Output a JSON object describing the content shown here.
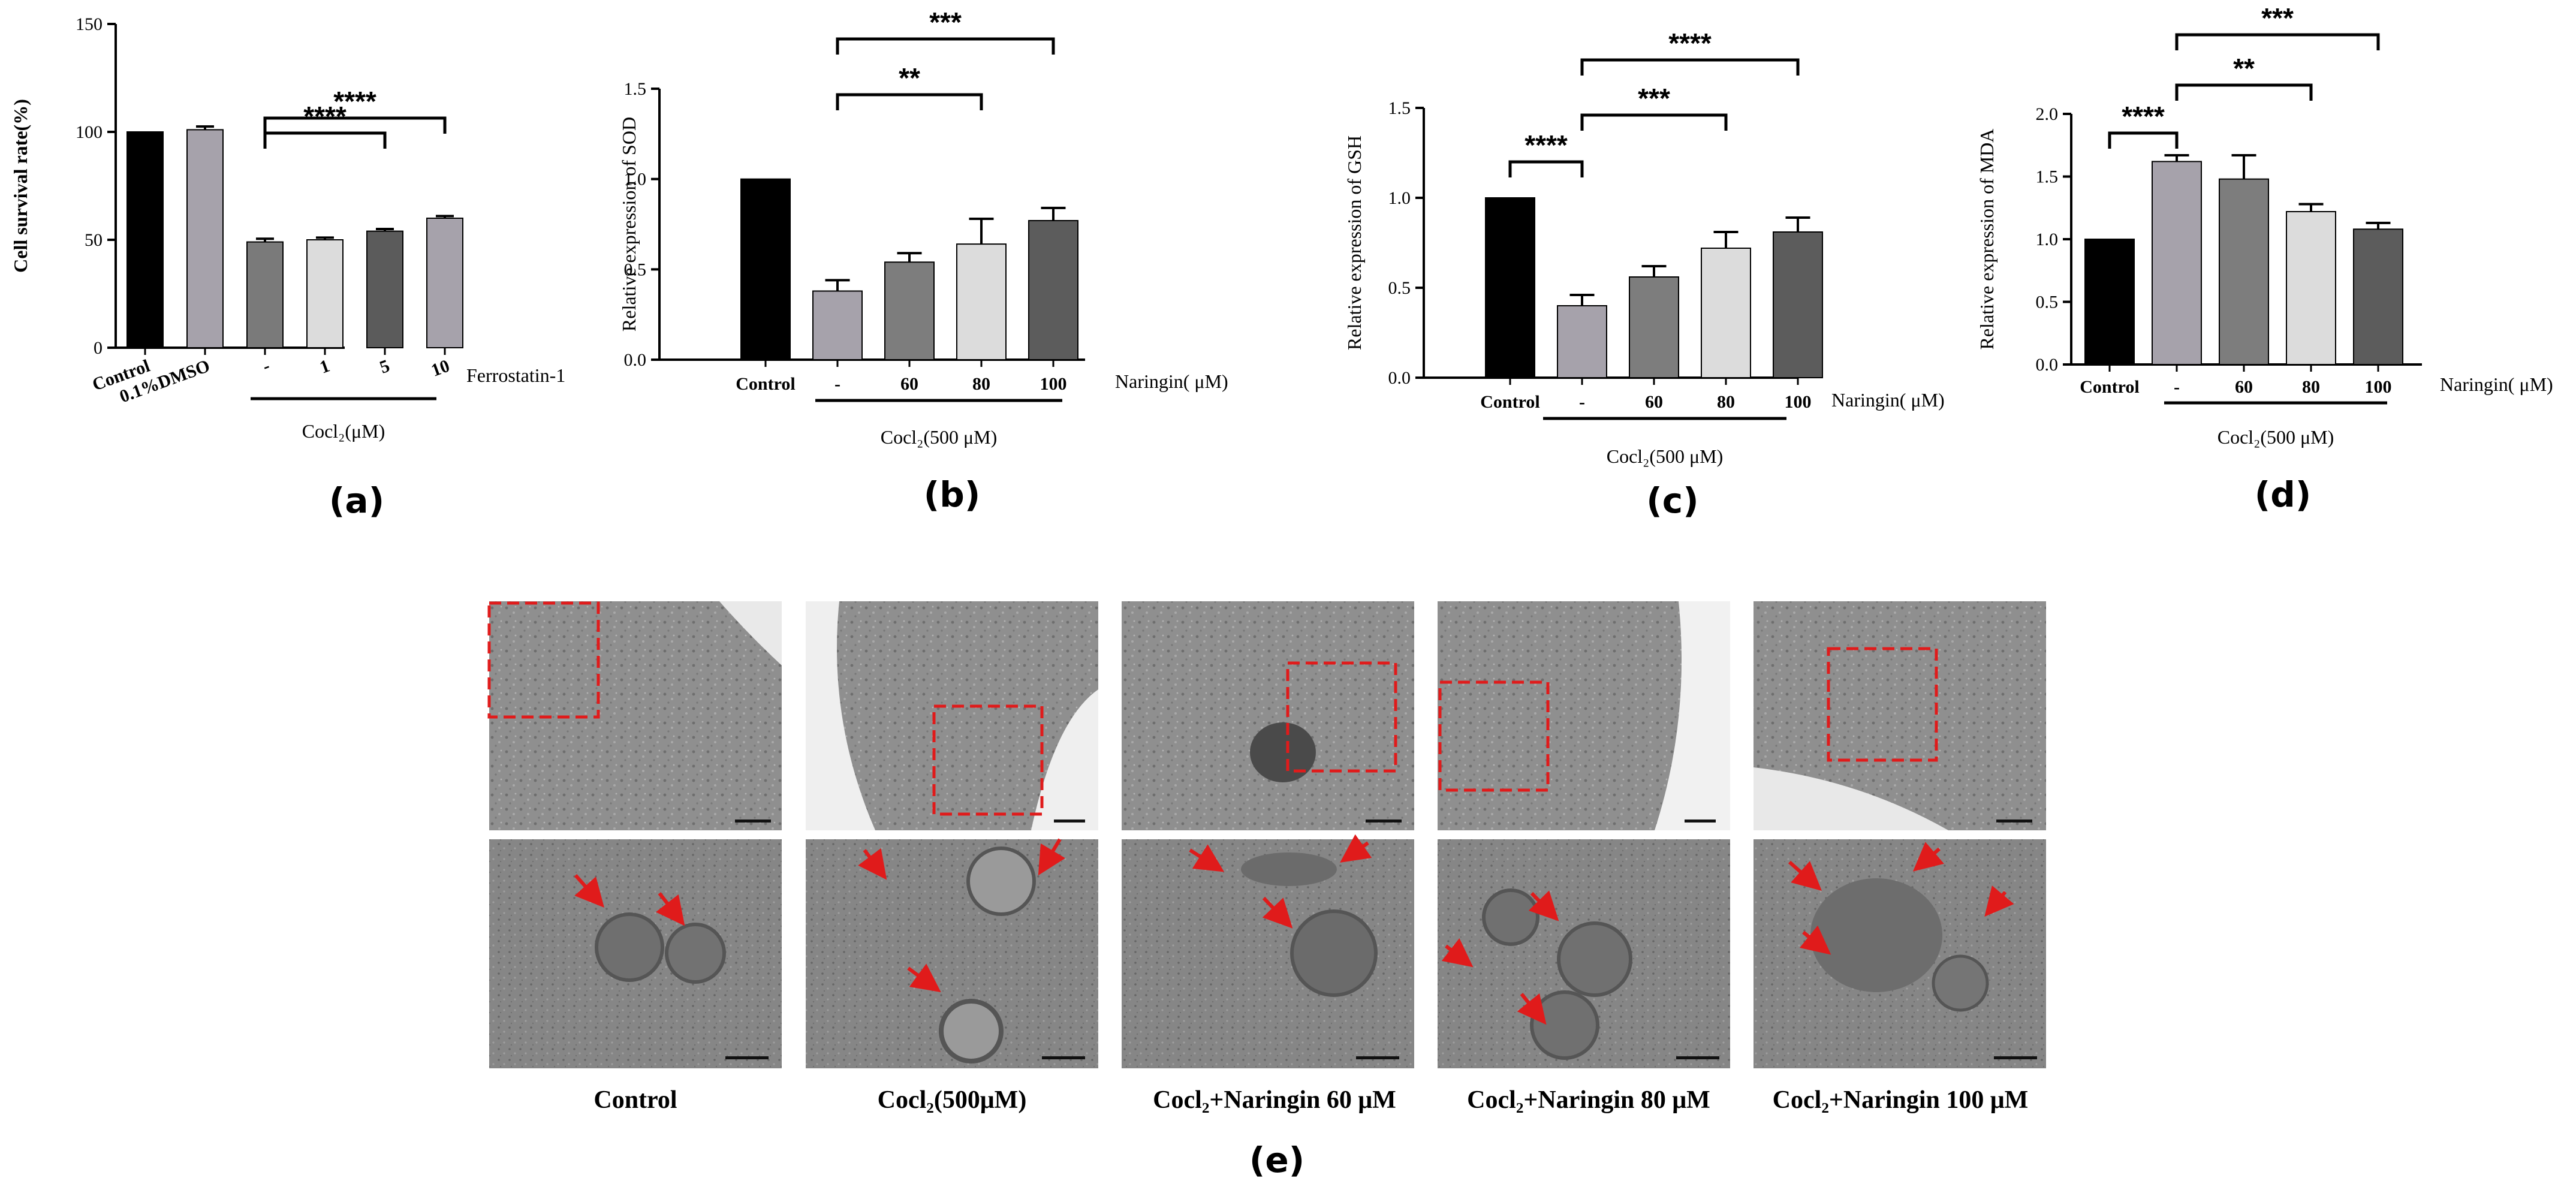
{
  "chart_data": [
    {
      "type": "bar",
      "panel": "(a)",
      "ylabel": "Cell survival rate(%)",
      "ylim": [
        0,
        150
      ],
      "yticks": [
        0,
        50,
        100,
        150
      ],
      "categories": [
        "Control",
        "0.1%DMSO",
        "-",
        "1",
        "5",
        "10"
      ],
      "values": [
        100,
        101,
        49,
        50,
        54,
        60
      ],
      "errors": [
        0,
        1.5,
        1.5,
        1,
        1,
        1
      ],
      "colors": [
        "#000000",
        "#a6a2ab",
        "#7a7a7a",
        "#dcdcdc",
        "#5b5b5b",
        "#a6a2ab"
      ],
      "treatment_label": "Ferrostatin-1",
      "group_label": "Cocl₂(μM)",
      "significance": [
        {
          "from": 2,
          "to": 4,
          "label": "****"
        },
        {
          "from": 2,
          "to": 5,
          "label": "****"
        }
      ]
    },
    {
      "type": "bar",
      "panel": "(b)",
      "ylabel": "Relative expression of SOD",
      "ylim": [
        0,
        1.5
      ],
      "yticks": [
        0.0,
        0.5,
        1.0,
        1.5
      ],
      "categories": [
        "Control",
        "-",
        "60",
        "80",
        "100"
      ],
      "values": [
        1.0,
        0.38,
        0.54,
        0.64,
        0.77
      ],
      "errors": [
        0,
        0.06,
        0.05,
        0.14,
        0.07
      ],
      "colors": [
        "#000000",
        "#a6a2ab",
        "#7d7d7d",
        "#dcdcdc",
        "#5c5c5c"
      ],
      "treatment_label": "Naringin( μM)",
      "group_label": "Cocl₂(500 μM)",
      "significance": [
        {
          "from": 1,
          "to": 3,
          "label": "**"
        },
        {
          "from": 1,
          "to": 4,
          "label": "***"
        }
      ]
    },
    {
      "type": "bar",
      "panel": "(c)",
      "ylabel": "Relative expression of GSH",
      "ylim": [
        0,
        1.5
      ],
      "yticks": [
        0.0,
        0.5,
        1.0,
        1.5
      ],
      "categories": [
        "Control",
        "-",
        "60",
        "80",
        "100"
      ],
      "values": [
        1.0,
        0.4,
        0.56,
        0.72,
        0.81
      ],
      "errors": [
        0,
        0.06,
        0.06,
        0.09,
        0.08
      ],
      "colors": [
        "#000000",
        "#a6a2ab",
        "#7d7d7d",
        "#dcdcdc",
        "#5c5c5c"
      ],
      "treatment_label": "Naringin( μM)",
      "group_label": "Cocl₂(500 μM)",
      "significance": [
        {
          "from": 0,
          "to": 1,
          "label": "****"
        },
        {
          "from": 1,
          "to": 3,
          "label": "***"
        },
        {
          "from": 1,
          "to": 4,
          "label": "****"
        }
      ]
    },
    {
      "type": "bar",
      "panel": "(d)",
      "ylabel": "Relative expression of MDA",
      "ylim": [
        0,
        2.0
      ],
      "yticks": [
        0.0,
        0.5,
        1.0,
        1.5,
        2.0
      ],
      "categories": [
        "Control",
        "-",
        "60",
        "80",
        "100"
      ],
      "values": [
        1.0,
        1.62,
        1.48,
        1.22,
        1.08
      ],
      "errors": [
        0,
        0.05,
        0.19,
        0.06,
        0.05
      ],
      "colors": [
        "#000000",
        "#a6a2ab",
        "#7d7d7d",
        "#dcdcdc",
        "#5c5c5c"
      ],
      "treatment_label": "Naringin( μM)",
      "group_label": "Cocl₂(500 μM)",
      "significance": [
        {
          "from": 0,
          "to": 1,
          "label": "****"
        },
        {
          "from": 1,
          "to": 3,
          "label": "**"
        },
        {
          "from": 1,
          "to": 4,
          "label": "***"
        }
      ]
    }
  ],
  "micrographs": {
    "panel": "(e)",
    "captions": [
      "Control",
      "Cocl₂(500μM)",
      "Cocl₂+Naringin 60 μM",
      "Cocl₂+Naringin 80 μM",
      "Cocl₂+Naringin 100 μM"
    ],
    "box_color": "#e01b1b",
    "arrow_color": "#e01b1b"
  }
}
